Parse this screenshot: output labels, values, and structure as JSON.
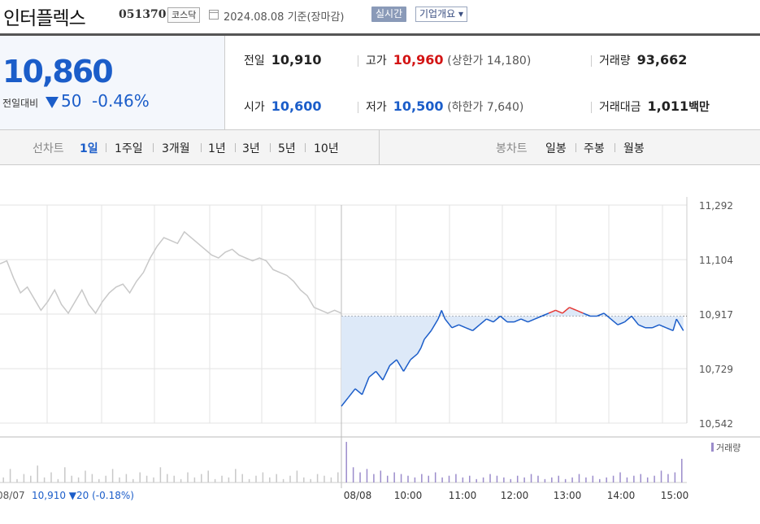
{
  "header": {
    "name": "인터플렉스",
    "code": "051370",
    "market": "코스닥",
    "date": "2024.08.08  기준(장마감)",
    "realtime_label": "실시간",
    "company_label": "기업개요 ▾"
  },
  "price": {
    "current": "10,860",
    "change_label": "전일대비",
    "change_amount": "50",
    "change_rate": "-0.46%"
  },
  "quotes": {
    "prev_close_label": "전일",
    "prev_close": "10,910",
    "high_label": "고가",
    "high": "10,960",
    "upper_limit": "(상한가 14,180)",
    "volume_label": "거래량",
    "volume": "93,662",
    "open_label": "시가",
    "open": "10,600",
    "low_label": "저가",
    "low": "10,500",
    "lower_limit": "(하한가 7,640)",
    "amount_label": "거래대금",
    "amount": "1,011",
    "amount_unit": "백만"
  },
  "toolbar": {
    "line_chart_label": "선차트",
    "periods": [
      "1일",
      "1주일",
      "3개월",
      "1년",
      "3년",
      "5년",
      "10년"
    ],
    "active_period": "1일",
    "candle_chart_label": "봉차트",
    "candle_periods": [
      "일봉",
      "주봉",
      "월봉"
    ]
  },
  "chart_data": {
    "type": "line",
    "y_ticks": [
      "11,292",
      "11,104",
      "10,917",
      "10,729",
      "10,542"
    ],
    "ylim": [
      10542,
      11292
    ],
    "prev_close": 10910,
    "x_ticks": [
      "08/08",
      "10:00",
      "11:00",
      "12:00",
      "13:00",
      "14:00",
      "15:00"
    ],
    "prev_day_label": "08/07",
    "prev_day_info": "10,910 ▼20 (-0.18%)",
    "volume_legend": "거래량",
    "colors": {
      "up": "#e53935",
      "down": "#1b5dc9",
      "prev_day": "#c8c8c8",
      "fill": "#dde9f8",
      "volume": "#9b8ccb"
    },
    "prev_day_series": [
      [
        0,
        11090
      ],
      [
        2,
        11100
      ],
      [
        4,
        11040
      ],
      [
        6,
        10990
      ],
      [
        8,
        11010
      ],
      [
        10,
        10970
      ],
      [
        12,
        10930
      ],
      [
        14,
        10960
      ],
      [
        16,
        11000
      ],
      [
        18,
        10950
      ],
      [
        20,
        10920
      ],
      [
        22,
        10960
      ],
      [
        24,
        11000
      ],
      [
        26,
        10950
      ],
      [
        28,
        10920
      ],
      [
        30,
        10960
      ],
      [
        32,
        10990
      ],
      [
        34,
        11010
      ],
      [
        36,
        11020
      ],
      [
        38,
        10990
      ],
      [
        40,
        11030
      ],
      [
        42,
        11060
      ],
      [
        44,
        11110
      ],
      [
        46,
        11150
      ],
      [
        48,
        11180
      ],
      [
        50,
        11170
      ],
      [
        52,
        11160
      ],
      [
        54,
        11200
      ],
      [
        56,
        11180
      ],
      [
        58,
        11160
      ],
      [
        60,
        11140
      ],
      [
        62,
        11120
      ],
      [
        64,
        11110
      ],
      [
        66,
        11130
      ],
      [
        68,
        11140
      ],
      [
        70,
        11120
      ],
      [
        72,
        11110
      ],
      [
        74,
        11100
      ],
      [
        76,
        11110
      ],
      [
        78,
        11100
      ],
      [
        80,
        11070
      ],
      [
        82,
        11060
      ],
      [
        84,
        11050
      ],
      [
        86,
        11030
      ],
      [
        88,
        11000
      ],
      [
        90,
        10980
      ],
      [
        92,
        10940
      ],
      [
        94,
        10930
      ],
      [
        96,
        10920
      ],
      [
        98,
        10930
      ],
      [
        100,
        10920
      ]
    ],
    "intraday_series": [
      [
        0,
        10600
      ],
      [
        2,
        10630
      ],
      [
        4,
        10660
      ],
      [
        6,
        10640
      ],
      [
        8,
        10700
      ],
      [
        10,
        10720
      ],
      [
        12,
        10690
      ],
      [
        14,
        10740
      ],
      [
        16,
        10760
      ],
      [
        18,
        10720
      ],
      [
        20,
        10760
      ],
      [
        22,
        10780
      ],
      [
        23,
        10800
      ],
      [
        24,
        10830
      ],
      [
        26,
        10860
      ],
      [
        28,
        10900
      ],
      [
        29,
        10930
      ],
      [
        30,
        10900
      ],
      [
        32,
        10870
      ],
      [
        34,
        10880
      ],
      [
        36,
        10870
      ],
      [
        38,
        10860
      ],
      [
        40,
        10880
      ],
      [
        42,
        10900
      ],
      [
        44,
        10890
      ],
      [
        46,
        10910
      ],
      [
        48,
        10890
      ],
      [
        50,
        10890
      ],
      [
        52,
        10900
      ],
      [
        54,
        10890
      ],
      [
        56,
        10900
      ],
      [
        58,
        10910
      ],
      [
        60,
        10920
      ],
      [
        62,
        10930
      ],
      [
        64,
        10920
      ],
      [
        66,
        10940
      ],
      [
        68,
        10930
      ],
      [
        70,
        10920
      ],
      [
        72,
        10910
      ],
      [
        74,
        10910
      ],
      [
        76,
        10920
      ],
      [
        78,
        10900
      ],
      [
        80,
        10880
      ],
      [
        82,
        10890
      ],
      [
        84,
        10910
      ],
      [
        86,
        10880
      ],
      [
        88,
        10870
      ],
      [
        90,
        10870
      ],
      [
        92,
        10880
      ],
      [
        94,
        10870
      ],
      [
        96,
        10860
      ],
      [
        97,
        10900
      ],
      [
        98,
        10880
      ],
      [
        99,
        10860
      ]
    ],
    "volume_prev": [
      3,
      8,
      2,
      5,
      4,
      10,
      3,
      6,
      2,
      9,
      4,
      3,
      7,
      5,
      2,
      4,
      8,
      3,
      5,
      2,
      6,
      4,
      3,
      9,
      5,
      4,
      2,
      6,
      3,
      5,
      7,
      2,
      4,
      3,
      8,
      5,
      2,
      4,
      6,
      3,
      5,
      2,
      4,
      7,
      3,
      2,
      5,
      4,
      3,
      6
    ],
    "volume_today": [
      24,
      9,
      6,
      8,
      5,
      7,
      4,
      6,
      5,
      4,
      3,
      5,
      4,
      6,
      3,
      4,
      5,
      3,
      4,
      2,
      3,
      5,
      4,
      3,
      2,
      4,
      3,
      5,
      4,
      2,
      3,
      4,
      2,
      3,
      5,
      3,
      4,
      2,
      3,
      4,
      6,
      3,
      4,
      5,
      3,
      4,
      7,
      5,
      6,
      14
    ]
  }
}
